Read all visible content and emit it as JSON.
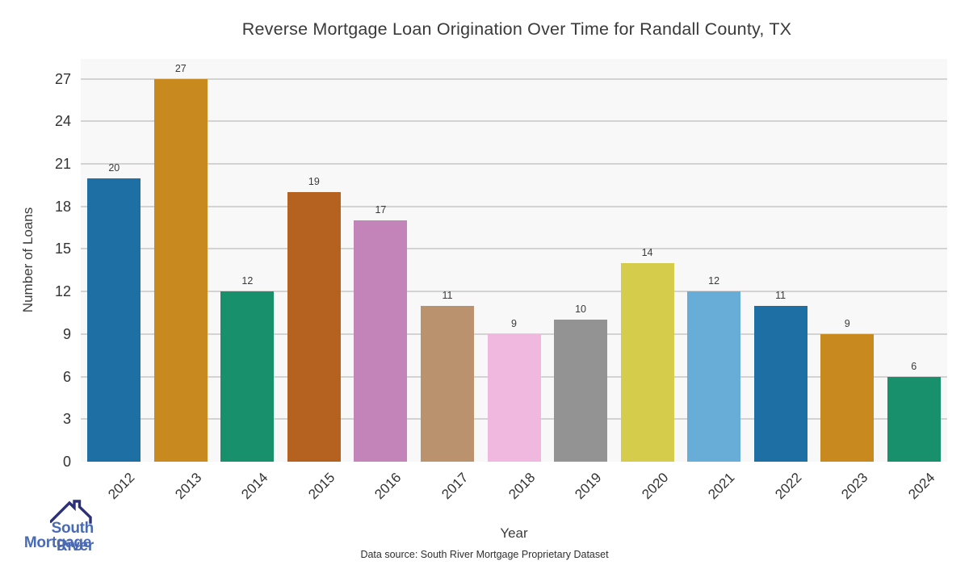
{
  "title": "Reverse Mortgage Loan Origination Over Time for Randall County, TX",
  "source_note": "Data source: South River Mortgage Proprietary Dataset",
  "logo": {
    "line1": "South River",
    "line2": "Mortgage",
    "text_color": "#4a6bb4",
    "icon_color": "#2b3078"
  },
  "chart_data": {
    "type": "bar",
    "title": "Reverse Mortgage Loan Origination Over Time for Randall County, TX",
    "xlabel": "Year",
    "ylabel": "Number of Loans",
    "categories": [
      "2012",
      "2013",
      "2014",
      "2015",
      "2016",
      "2017",
      "2018",
      "2019",
      "2020",
      "2021",
      "2022",
      "2023",
      "2024"
    ],
    "values": [
      20,
      27,
      12,
      19,
      17,
      11,
      9,
      10,
      14,
      12,
      11,
      9,
      6
    ],
    "bar_colors": [
      "#1d6fa4",
      "#c8891e",
      "#17906b",
      "#b5611f",
      "#c384ba",
      "#bb926e",
      "#f0b8df",
      "#939393",
      "#d4cc4a",
      "#68acd8",
      "#1d6fa4",
      "#c8891e",
      "#17906b"
    ],
    "yticks": [
      0,
      3,
      6,
      9,
      12,
      15,
      18,
      21,
      24,
      27
    ],
    "ylim": [
      0,
      28.4
    ],
    "grid": "horizontal",
    "legend": "none",
    "plot_bg": "#f8f8f8",
    "grid_color": "#d3d3d3"
  }
}
